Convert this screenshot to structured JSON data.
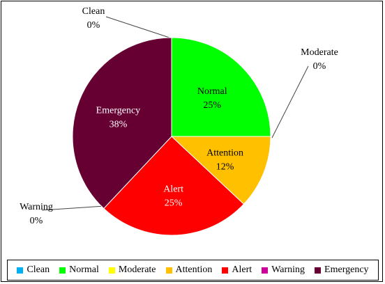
{
  "chart_data": {
    "type": "pie",
    "start_position": "top",
    "direction": "clockwise",
    "legend_position": "bottom",
    "slices": [
      {
        "label": "Clean",
        "value": 0,
        "pct_label": "0%",
        "color": "#00b0f0"
      },
      {
        "label": "Normal",
        "value": 25,
        "pct_label": "25%",
        "color": "#00ff00"
      },
      {
        "label": "Moderate",
        "value": 0,
        "pct_label": "0%",
        "color": "#ffff00"
      },
      {
        "label": "Attention",
        "value": 12,
        "pct_label": "12%",
        "color": "#ffc000"
      },
      {
        "label": "Alert",
        "value": 25,
        "pct_label": "25%",
        "color": "#ff0000"
      },
      {
        "label": "Warning",
        "value": 0,
        "pct_label": "0%",
        "color": "#cc0099"
      },
      {
        "label": "Emergency",
        "value": 38,
        "pct_label": "38%",
        "color": "#660033"
      }
    ]
  },
  "legend": {
    "items": [
      "Clean",
      "Normal",
      "Moderate",
      "Attention",
      "Alert",
      "Warning",
      "Emergency"
    ]
  }
}
